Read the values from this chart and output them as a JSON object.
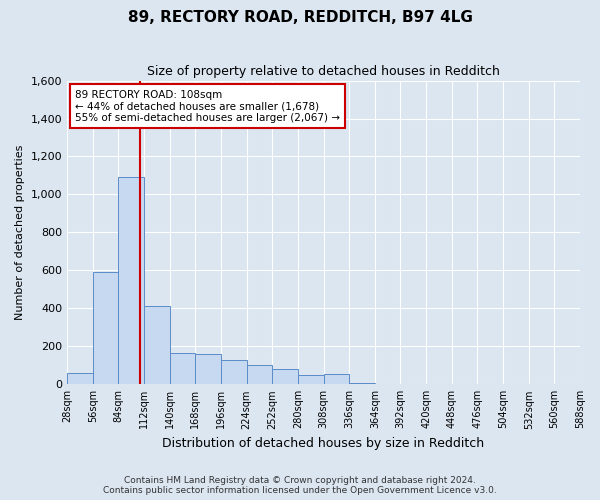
{
  "title": "89, RECTORY ROAD, REDDITCH, B97 4LG",
  "subtitle": "Size of property relative to detached houses in Redditch",
  "xlabel": "Distribution of detached houses by size in Redditch",
  "ylabel": "Number of detached properties",
  "footer": "Contains HM Land Registry data © Crown copyright and database right 2024.\nContains public sector information licensed under the Open Government Licence v3.0.",
  "bin_lefts": [
    28,
    56,
    84,
    112,
    140,
    168,
    196,
    224,
    252,
    280,
    308,
    336,
    364,
    392,
    420,
    448,
    476,
    504,
    532,
    560
  ],
  "bin_width": 28,
  "bar_heights": [
    60,
    590,
    1090,
    415,
    165,
    160,
    130,
    100,
    80,
    50,
    55,
    5,
    0,
    0,
    0,
    0,
    0,
    0,
    0,
    0
  ],
  "bar_color": "#c6d9f1",
  "bar_edge_color": "#5b8cc8",
  "property_size": 108,
  "property_line_color": "#cc0000",
  "annotation_line1": "89 RECTORY ROAD: 108sqm",
  "annotation_line2": "← 44% of detached houses are smaller (1,678)",
  "annotation_line3": "55% of semi-detached houses are larger (2,067) →",
  "annotation_box_color": "#cc0000",
  "annotation_bg": "white",
  "ylim": [
    0,
    1600
  ],
  "yticks": [
    0,
    200,
    400,
    600,
    800,
    1000,
    1200,
    1400,
    1600
  ],
  "xlim_left": 28,
  "xlim_right": 588,
  "bg_color": "#dce6f1",
  "plot_bg_color": "#dce6f1",
  "grid_color": "white",
  "title_fontsize": 11,
  "subtitle_fontsize": 9,
  "ylabel_fontsize": 8,
  "xlabel_fontsize": 9,
  "ytick_fontsize": 8,
  "xtick_fontsize": 7,
  "footer_fontsize": 6.5
}
